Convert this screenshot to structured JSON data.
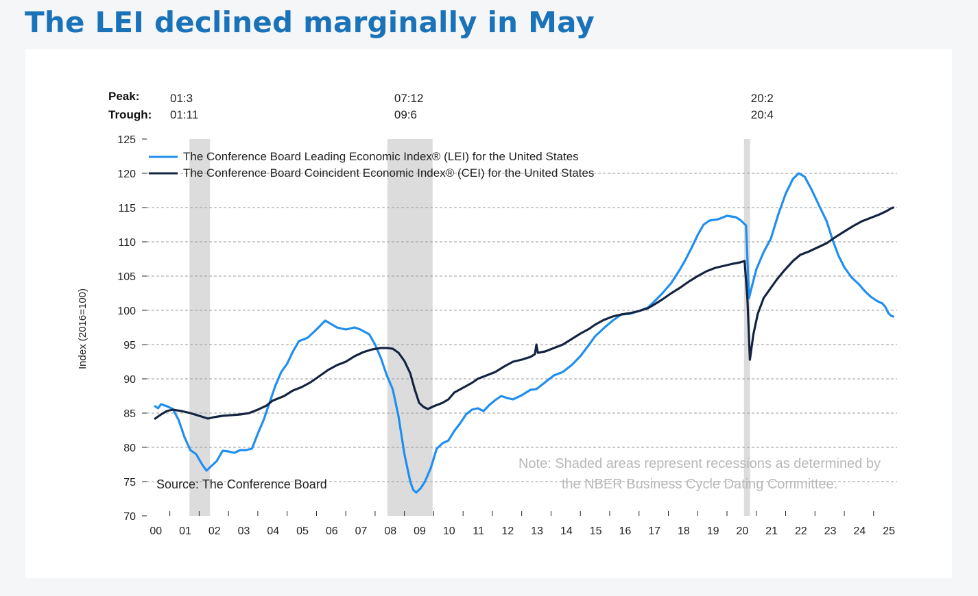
{
  "title": "The LEI declined marginally in May",
  "chart_data": {
    "type": "line",
    "ylabel": "Index (2016=100)",
    "ylim": [
      70,
      125
    ],
    "yticks": [
      70,
      75,
      80,
      85,
      90,
      95,
      100,
      105,
      110,
      115,
      120,
      125
    ],
    "xlim": [
      2000,
      2025.25
    ],
    "xticks": [
      {
        "label": "00",
        "x": 2000
      },
      {
        "label": "01",
        "x": 2001
      },
      {
        "label": "02",
        "x": 2002
      },
      {
        "label": "03",
        "x": 2003
      },
      {
        "label": "04",
        "x": 2004
      },
      {
        "label": "05",
        "x": 2005
      },
      {
        "label": "06",
        "x": 2006
      },
      {
        "label": "07",
        "x": 2007
      },
      {
        "label": "08",
        "x": 2008
      },
      {
        "label": "09",
        "x": 2009
      },
      {
        "label": "10",
        "x": 2010
      },
      {
        "label": "11",
        "x": 2011
      },
      {
        "label": "12",
        "x": 2012
      },
      {
        "label": "13",
        "x": 2013
      },
      {
        "label": "14",
        "x": 2014
      },
      {
        "label": "15",
        "x": 2015
      },
      {
        "label": "16",
        "x": 2016
      },
      {
        "label": "17",
        "x": 2017
      },
      {
        "label": "18",
        "x": 2018
      },
      {
        "label": "19",
        "x": 2019
      },
      {
        "label": "20",
        "x": 2020
      },
      {
        "label": "21",
        "x": 2021
      },
      {
        "label": "22",
        "x": 2022
      },
      {
        "label": "23",
        "x": 2023
      },
      {
        "label": "24",
        "x": 2024
      },
      {
        "label": "25",
        "x": 2025
      }
    ],
    "peak_label": "Peak:",
    "trough_label": "Trough:",
    "recessions": [
      {
        "peak": "01:3",
        "trough": "01:11",
        "start": 2001.17,
        "end": 2001.87
      },
      {
        "peak": "07:12",
        "trough": "09:6",
        "start": 2007.92,
        "end": 2009.46
      },
      {
        "peak": "20:2",
        "trough": "20:4",
        "start": 2020.08,
        "end": 2020.29
      }
    ],
    "legend_position": "top-left",
    "gridlines": "horizontal-dashed",
    "series": [
      {
        "name": "The Conference Board Leading Economic Index® (LEI) for the United States",
        "color": "#1e8ef0",
        "points": [
          [
            2000.0,
            86.0
          ],
          [
            2000.1,
            85.7
          ],
          [
            2000.2,
            86.3
          ],
          [
            2000.4,
            86.0
          ],
          [
            2000.6,
            85.6
          ],
          [
            2000.8,
            84.0
          ],
          [
            2001.0,
            81.5
          ],
          [
            2001.2,
            79.6
          ],
          [
            2001.4,
            79.0
          ],
          [
            2001.6,
            77.5
          ],
          [
            2001.75,
            76.6
          ],
          [
            2001.9,
            77.2
          ],
          [
            2002.1,
            78.0
          ],
          [
            2002.3,
            79.5
          ],
          [
            2002.5,
            79.4
          ],
          [
            2002.7,
            79.2
          ],
          [
            2002.9,
            79.6
          ],
          [
            2003.1,
            79.6
          ],
          [
            2003.3,
            79.8
          ],
          [
            2003.5,
            82.0
          ],
          [
            2003.7,
            84.0
          ],
          [
            2003.9,
            86.5
          ],
          [
            2004.1,
            89.0
          ],
          [
            2004.3,
            91.0
          ],
          [
            2004.5,
            92.2
          ],
          [
            2004.7,
            94.0
          ],
          [
            2004.9,
            95.5
          ],
          [
            2005.2,
            96.0
          ],
          [
            2005.5,
            97.2
          ],
          [
            2005.8,
            98.5
          ],
          [
            2006.0,
            98.0
          ],
          [
            2006.2,
            97.5
          ],
          [
            2006.5,
            97.2
          ],
          [
            2006.8,
            97.5
          ],
          [
            2007.0,
            97.2
          ],
          [
            2007.3,
            96.5
          ],
          [
            2007.5,
            95.0
          ],
          [
            2007.7,
            93.0
          ],
          [
            2007.9,
            90.5
          ],
          [
            2008.1,
            88.5
          ],
          [
            2008.3,
            84.5
          ],
          [
            2008.5,
            79.0
          ],
          [
            2008.7,
            75.0
          ],
          [
            2008.8,
            73.8
          ],
          [
            2008.9,
            73.4
          ],
          [
            2009.05,
            74.0
          ],
          [
            2009.2,
            75.0
          ],
          [
            2009.4,
            77.0
          ],
          [
            2009.6,
            79.8
          ],
          [
            2009.8,
            80.6
          ],
          [
            2010.0,
            81.0
          ],
          [
            2010.2,
            82.4
          ],
          [
            2010.4,
            83.5
          ],
          [
            2010.6,
            84.8
          ],
          [
            2010.8,
            85.5
          ],
          [
            2011.0,
            85.7
          ],
          [
            2011.2,
            85.3
          ],
          [
            2011.4,
            86.2
          ],
          [
            2011.6,
            86.9
          ],
          [
            2011.8,
            87.5
          ],
          [
            2012.0,
            87.2
          ],
          [
            2012.2,
            87.0
          ],
          [
            2012.5,
            87.6
          ],
          [
            2012.8,
            88.4
          ],
          [
            2013.0,
            88.5
          ],
          [
            2013.3,
            89.5
          ],
          [
            2013.6,
            90.5
          ],
          [
            2013.9,
            91.0
          ],
          [
            2014.2,
            92.0
          ],
          [
            2014.5,
            93.3
          ],
          [
            2014.8,
            95.0
          ],
          [
            2015.0,
            96.2
          ],
          [
            2015.3,
            97.4
          ],
          [
            2015.6,
            98.5
          ],
          [
            2015.9,
            99.4
          ],
          [
            2016.2,
            99.5
          ],
          [
            2016.5,
            99.9
          ],
          [
            2016.8,
            100.4
          ],
          [
            2017.0,
            101.2
          ],
          [
            2017.3,
            102.5
          ],
          [
            2017.6,
            104.0
          ],
          [
            2017.9,
            106.0
          ],
          [
            2018.1,
            107.5
          ],
          [
            2018.3,
            109.2
          ],
          [
            2018.5,
            111.0
          ],
          [
            2018.7,
            112.5
          ],
          [
            2018.9,
            113.1
          ],
          [
            2019.2,
            113.3
          ],
          [
            2019.5,
            113.8
          ],
          [
            2019.8,
            113.6
          ],
          [
            2019.95,
            113.2
          ],
          [
            2020.05,
            112.8
          ],
          [
            2020.15,
            112.4
          ],
          [
            2020.25,
            101.8
          ],
          [
            2020.35,
            103.5
          ],
          [
            2020.5,
            106.0
          ],
          [
            2020.75,
            108.5
          ],
          [
            2021.0,
            110.5
          ],
          [
            2021.25,
            114.0
          ],
          [
            2021.5,
            117.0
          ],
          [
            2021.75,
            119.2
          ],
          [
            2021.95,
            120.0
          ],
          [
            2022.15,
            119.5
          ],
          [
            2022.4,
            117.5
          ],
          [
            2022.65,
            115.2
          ],
          [
            2022.9,
            113.0
          ],
          [
            2023.1,
            110.3
          ],
          [
            2023.3,
            108.0
          ],
          [
            2023.5,
            106.3
          ],
          [
            2023.75,
            104.8
          ],
          [
            2024.0,
            103.8
          ],
          [
            2024.2,
            102.8
          ],
          [
            2024.4,
            102.0
          ],
          [
            2024.6,
            101.4
          ],
          [
            2024.8,
            101.0
          ],
          [
            2024.9,
            100.5
          ],
          [
            2025.0,
            99.6
          ],
          [
            2025.1,
            99.2
          ],
          [
            2025.17,
            99.1
          ]
        ]
      },
      {
        "name": "The Conference Board Coincident Economic Index® (CEI) for the United States",
        "color": "#14233f",
        "points": [
          [
            2000.0,
            84.2
          ],
          [
            2000.2,
            84.8
          ],
          [
            2000.4,
            85.3
          ],
          [
            2000.6,
            85.5
          ],
          [
            2000.9,
            85.3
          ],
          [
            2001.2,
            85.0
          ],
          [
            2001.5,
            84.6
          ],
          [
            2001.8,
            84.2
          ],
          [
            2002.0,
            84.4
          ],
          [
            2002.3,
            84.6
          ],
          [
            2002.6,
            84.7
          ],
          [
            2002.9,
            84.8
          ],
          [
            2003.2,
            85.0
          ],
          [
            2003.5,
            85.5
          ],
          [
            2003.8,
            86.1
          ],
          [
            2004.0,
            86.8
          ],
          [
            2004.4,
            87.5
          ],
          [
            2004.7,
            88.3
          ],
          [
            2005.0,
            88.8
          ],
          [
            2005.3,
            89.5
          ],
          [
            2005.6,
            90.4
          ],
          [
            2005.9,
            91.3
          ],
          [
            2006.2,
            92.0
          ],
          [
            2006.5,
            92.5
          ],
          [
            2006.8,
            93.3
          ],
          [
            2007.1,
            93.9
          ],
          [
            2007.4,
            94.3
          ],
          [
            2007.7,
            94.5
          ],
          [
            2007.9,
            94.5
          ],
          [
            2008.1,
            94.4
          ],
          [
            2008.3,
            93.8
          ],
          [
            2008.5,
            92.6
          ],
          [
            2008.7,
            90.8
          ],
          [
            2008.85,
            88.5
          ],
          [
            2009.0,
            86.5
          ],
          [
            2009.15,
            85.9
          ],
          [
            2009.3,
            85.6
          ],
          [
            2009.5,
            86.0
          ],
          [
            2009.8,
            86.5
          ],
          [
            2010.0,
            87.0
          ],
          [
            2010.2,
            88.0
          ],
          [
            2010.5,
            88.7
          ],
          [
            2010.8,
            89.4
          ],
          [
            2011.0,
            90.0
          ],
          [
            2011.3,
            90.5
          ],
          [
            2011.6,
            91.0
          ],
          [
            2011.9,
            91.8
          ],
          [
            2012.2,
            92.5
          ],
          [
            2012.5,
            92.8
          ],
          [
            2012.8,
            93.2
          ],
          [
            2012.95,
            93.6
          ],
          [
            2013.0,
            95.0
          ],
          [
            2013.05,
            93.8
          ],
          [
            2013.3,
            94.0
          ],
          [
            2013.6,
            94.5
          ],
          [
            2013.9,
            95.0
          ],
          [
            2014.2,
            95.8
          ],
          [
            2014.5,
            96.6
          ],
          [
            2014.8,
            97.3
          ],
          [
            2015.0,
            97.9
          ],
          [
            2015.3,
            98.6
          ],
          [
            2015.6,
            99.1
          ],
          [
            2015.9,
            99.4
          ],
          [
            2016.2,
            99.6
          ],
          [
            2016.5,
            99.9
          ],
          [
            2016.8,
            100.3
          ],
          [
            2017.0,
            100.8
          ],
          [
            2017.3,
            101.6
          ],
          [
            2017.6,
            102.5
          ],
          [
            2017.9,
            103.3
          ],
          [
            2018.2,
            104.2
          ],
          [
            2018.5,
            105.0
          ],
          [
            2018.8,
            105.7
          ],
          [
            2019.1,
            106.2
          ],
          [
            2019.4,
            106.5
          ],
          [
            2019.7,
            106.8
          ],
          [
            2019.95,
            107.0
          ],
          [
            2020.1,
            107.2
          ],
          [
            2020.2,
            101.5
          ],
          [
            2020.28,
            92.8
          ],
          [
            2020.4,
            96.5
          ],
          [
            2020.55,
            99.5
          ],
          [
            2020.75,
            101.8
          ],
          [
            2021.0,
            103.3
          ],
          [
            2021.2,
            104.5
          ],
          [
            2021.45,
            105.8
          ],
          [
            2021.75,
            107.2
          ],
          [
            2022.0,
            108.1
          ],
          [
            2022.3,
            108.6
          ],
          [
            2022.6,
            109.2
          ],
          [
            2022.9,
            109.8
          ],
          [
            2023.2,
            110.7
          ],
          [
            2023.5,
            111.5
          ],
          [
            2023.8,
            112.3
          ],
          [
            2024.1,
            113.0
          ],
          [
            2024.4,
            113.5
          ],
          [
            2024.7,
            114.0
          ],
          [
            2024.95,
            114.5
          ],
          [
            2025.1,
            114.9
          ],
          [
            2025.17,
            115.0
          ]
        ]
      }
    ],
    "note_line1": "Note: Shaded areas represent recessions as determined by",
    "note_line2": "the NBER Business Cycle Dating Committee.",
    "source": "Source: The Conference Board"
  }
}
